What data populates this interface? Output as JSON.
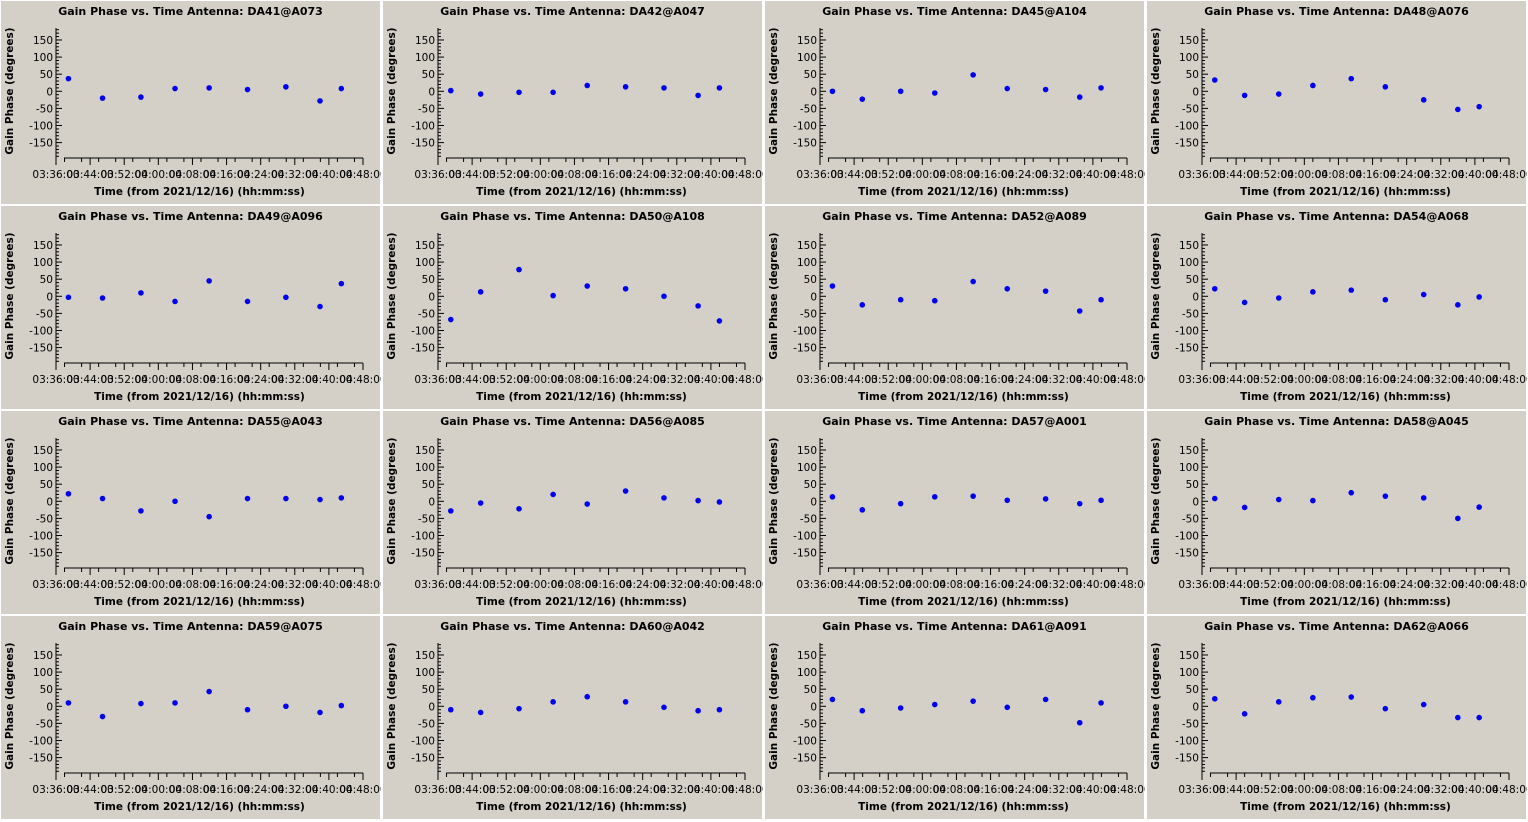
{
  "chart_data": [
    {
      "type": "scatter",
      "title": "Gain Phase vs. Time Antenna: DA41@A073",
      "xlabel": "Time (from 2021/12/16) (hh:mm:ss)",
      "ylabel": "Gain Phase (degrees)",
      "xticks": [
        "03:36:00",
        "03:44:00",
        "03:52:00",
        "04:00:00",
        "04:08:00",
        "04:16:00",
        "04:24:00",
        "04:32:00",
        "04:40:00",
        "04:48:00"
      ],
      "yticks": [
        150,
        100,
        50,
        0,
        -50,
        -100,
        -150
      ],
      "xlim": [
        "03:36:00",
        "04:48:00"
      ],
      "ylim": [
        -195,
        185
      ],
      "marker_color": "#0000ee",
      "x": [
        "03:38:55",
        "03:46:55",
        "03:55:55",
        "04:03:55",
        "04:11:55",
        "04:20:55",
        "04:29:55",
        "04:37:55",
        "04:42:55"
      ],
      "y": [
        37,
        -20,
        -17,
        8,
        10,
        5,
        13,
        -28,
        8
      ]
    },
    {
      "type": "scatter",
      "title": "Gain Phase vs. Time Antenna: DA42@A047",
      "xlabel": "Time (from 2021/12/16) (hh:mm:ss)",
      "ylabel": "Gain Phase (degrees)",
      "xticks": [
        "03:36:00",
        "03:44:00",
        "03:52:00",
        "04:00:00",
        "04:08:00",
        "04:16:00",
        "04:24:00",
        "04:32:00",
        "04:40:00",
        "04:48:00"
      ],
      "yticks": [
        150,
        100,
        50,
        0,
        -50,
        -100,
        -150
      ],
      "xlim": [
        "03:36:00",
        "04:48:00"
      ],
      "ylim": [
        -195,
        185
      ],
      "marker_color": "#0000ee",
      "x": [
        "03:39:00",
        "03:46:00",
        "03:55:00",
        "04:03:00",
        "04:11:00",
        "04:20:00",
        "04:29:00",
        "04:37:00",
        "04:42:00"
      ],
      "y": [
        2,
        -8,
        -3,
        -3,
        17,
        13,
        10,
        -12,
        10
      ]
    },
    {
      "type": "scatter",
      "title": "Gain Phase vs. Time Antenna: DA45@A104",
      "xlabel": "Time (from 2021/12/16) (hh:mm:ss)",
      "ylabel": "Gain Phase (degrees)",
      "xticks": [
        "03:36:00",
        "03:44:00",
        "03:52:00",
        "04:00:00",
        "04:08:00",
        "04:16:00",
        "04:24:00",
        "04:32:00",
        "04:40:00",
        "04:48:00"
      ],
      "yticks": [
        150,
        100,
        50,
        0,
        -50,
        -100,
        -150
      ],
      "xlim": [
        "03:36:00",
        "04:48:00"
      ],
      "ylim": [
        -195,
        185
      ],
      "marker_color": "#0000ee",
      "x": [
        "03:38:55",
        "03:45:55",
        "03:54:55",
        "04:02:55",
        "04:11:55",
        "04:19:55",
        "04:28:55",
        "04:36:55",
        "04:41:55"
      ],
      "y": [
        0,
        -23,
        0,
        -5,
        48,
        8,
        5,
        -17,
        10
      ]
    },
    {
      "type": "scatter",
      "title": "Gain Phase vs. Time Antenna: DA48@A076",
      "xlabel": "Time (from 2021/12/16) (hh:mm:ss)",
      "ylabel": "Gain Phase (degrees)",
      "xticks": [
        "03:36:00",
        "03:44:00",
        "03:52:00",
        "04:00:00",
        "04:08:00",
        "04:16:00",
        "04:24:00",
        "04:32:00",
        "04:40:00",
        "04:48:00"
      ],
      "yticks": [
        150,
        100,
        50,
        0,
        -50,
        -100,
        -150
      ],
      "xlim": [
        "03:36:00",
        "04:48:00"
      ],
      "ylim": [
        -195,
        185
      ],
      "marker_color": "#0000ee",
      "x": [
        "03:39:00",
        "03:46:00",
        "03:54:00",
        "04:02:00",
        "04:11:00",
        "04:19:00",
        "04:28:00",
        "04:36:00",
        "04:41:00"
      ],
      "y": [
        33,
        -12,
        -8,
        17,
        37,
        13,
        -25,
        -53,
        -45
      ]
    },
    {
      "type": "scatter",
      "title": "Gain Phase vs. Time Antenna: DA49@A096",
      "xlabel": "Time (from 2021/12/16) (hh:mm:ss)",
      "ylabel": "Gain Phase (degrees)",
      "xticks": [
        "03:36:00",
        "03:44:00",
        "03:52:00",
        "04:00:00",
        "04:08:00",
        "04:16:00",
        "04:24:00",
        "04:32:00",
        "04:40:00",
        "04:48:00"
      ],
      "yticks": [
        150,
        100,
        50,
        0,
        -50,
        -100,
        -150
      ],
      "xlim": [
        "03:36:00",
        "04:48:00"
      ],
      "ylim": [
        -195,
        185
      ],
      "marker_color": "#0000ee",
      "x": [
        "03:38:55",
        "03:46:55",
        "03:55:55",
        "04:03:55",
        "04:11:55",
        "04:20:55",
        "04:29:55",
        "04:37:55",
        "04:42:55"
      ],
      "y": [
        -3,
        -5,
        10,
        -15,
        45,
        -15,
        -3,
        -30,
        37
      ]
    },
    {
      "type": "scatter",
      "title": "Gain Phase vs. Time Antenna: DA50@A108",
      "xlabel": "Time (from 2021/12/16) (hh:mm:ss)",
      "ylabel": "Gain Phase (degrees)",
      "xticks": [
        "03:36:00",
        "03:44:00",
        "03:52:00",
        "04:00:00",
        "04:08:00",
        "04:16:00",
        "04:24:00",
        "04:32:00",
        "04:40:00",
        "04:48:00"
      ],
      "yticks": [
        150,
        100,
        50,
        0,
        -50,
        -100,
        -150
      ],
      "xlim": [
        "03:36:00",
        "04:48:00"
      ],
      "ylim": [
        -195,
        185
      ],
      "marker_color": "#0000ee",
      "x": [
        "03:39:00",
        "03:46:00",
        "03:55:00",
        "04:03:00",
        "04:11:00",
        "04:20:00",
        "04:29:00",
        "04:37:00",
        "04:42:00"
      ],
      "y": [
        -68,
        13,
        78,
        2,
        30,
        22,
        0,
        -28,
        -72
      ]
    },
    {
      "type": "scatter",
      "title": "Gain Phase vs. Time Antenna: DA52@A089",
      "xlabel": "Time (from 2021/12/16) (hh:mm:ss)",
      "ylabel": "Gain Phase (degrees)",
      "xticks": [
        "03:36:00",
        "03:44:00",
        "03:52:00",
        "04:00:00",
        "04:08:00",
        "04:16:00",
        "04:24:00",
        "04:32:00",
        "04:40:00",
        "04:48:00"
      ],
      "yticks": [
        150,
        100,
        50,
        0,
        -50,
        -100,
        -150
      ],
      "xlim": [
        "03:36:00",
        "04:48:00"
      ],
      "ylim": [
        -195,
        185
      ],
      "marker_color": "#0000ee",
      "x": [
        "03:38:55",
        "03:45:55",
        "03:54:55",
        "04:02:55",
        "04:11:55",
        "04:19:55",
        "04:28:55",
        "04:36:55",
        "04:41:55"
      ],
      "y": [
        30,
        -25,
        -10,
        -13,
        43,
        22,
        15,
        -43,
        -10
      ]
    },
    {
      "type": "scatter",
      "title": "Gain Phase vs. Time Antenna: DA54@A068",
      "xlabel": "Time (from 2021/12/16) (hh:mm:ss)",
      "ylabel": "Gain Phase (degrees)",
      "xticks": [
        "03:36:00",
        "03:44:00",
        "03:52:00",
        "04:00:00",
        "04:08:00",
        "04:16:00",
        "04:24:00",
        "04:32:00",
        "04:40:00",
        "04:48:00"
      ],
      "yticks": [
        150,
        100,
        50,
        0,
        -50,
        -100,
        -150
      ],
      "xlim": [
        "03:36:00",
        "04:48:00"
      ],
      "ylim": [
        -195,
        185
      ],
      "marker_color": "#0000ee",
      "x": [
        "03:39:00",
        "03:46:00",
        "03:54:00",
        "04:02:00",
        "04:11:00",
        "04:19:00",
        "04:28:00",
        "04:36:00",
        "04:41:00"
      ],
      "y": [
        22,
        -18,
        -5,
        13,
        18,
        -10,
        5,
        -25,
        -2
      ]
    },
    {
      "type": "scatter",
      "title": "Gain Phase vs. Time Antenna: DA55@A043",
      "xlabel": "Time (from 2021/12/16) (hh:mm:ss)",
      "ylabel": "Gain Phase (degrees)",
      "xticks": [
        "03:36:00",
        "03:44:00",
        "03:52:00",
        "04:00:00",
        "04:08:00",
        "04:16:00",
        "04:24:00",
        "04:32:00",
        "04:40:00",
        "04:48:00"
      ],
      "yticks": [
        150,
        100,
        50,
        0,
        -50,
        -100,
        -150
      ],
      "xlim": [
        "03:36:00",
        "04:48:00"
      ],
      "ylim": [
        -195,
        185
      ],
      "marker_color": "#0000ee",
      "x": [
        "03:38:55",
        "03:46:55",
        "03:55:55",
        "04:03:55",
        "04:11:55",
        "04:20:55",
        "04:29:55",
        "04:37:55",
        "04:42:55"
      ],
      "y": [
        22,
        8,
        -28,
        0,
        -45,
        8,
        8,
        5,
        10
      ]
    },
    {
      "type": "scatter",
      "title": "Gain Phase vs. Time Antenna: DA56@A085",
      "xlabel": "Time (from 2021/12/16) (hh:mm:ss)",
      "ylabel": "Gain Phase (degrees)",
      "xticks": [
        "03:36:00",
        "03:44:00",
        "03:52:00",
        "04:00:00",
        "04:08:00",
        "04:16:00",
        "04:24:00",
        "04:32:00",
        "04:40:00",
        "04:48:00"
      ],
      "yticks": [
        150,
        100,
        50,
        0,
        -50,
        -100,
        -150
      ],
      "xlim": [
        "03:36:00",
        "04:48:00"
      ],
      "ylim": [
        -195,
        185
      ],
      "marker_color": "#0000ee",
      "x": [
        "03:39:00",
        "03:46:00",
        "03:55:00",
        "04:03:00",
        "04:11:00",
        "04:20:00",
        "04:29:00",
        "04:37:00",
        "04:42:00"
      ],
      "y": [
        -28,
        -5,
        -22,
        20,
        -8,
        30,
        10,
        2,
        -2
      ]
    },
    {
      "type": "scatter",
      "title": "Gain Phase vs. Time Antenna: DA57@A001",
      "xlabel": "Time (from 2021/12/16) (hh:mm:ss)",
      "ylabel": "Gain Phase (degrees)",
      "xticks": [
        "03:36:00",
        "03:44:00",
        "03:52:00",
        "04:00:00",
        "04:08:00",
        "04:16:00",
        "04:24:00",
        "04:32:00",
        "04:40:00",
        "04:48:00"
      ],
      "yticks": [
        150,
        100,
        50,
        0,
        -50,
        -100,
        -150
      ],
      "xlim": [
        "03:36:00",
        "04:48:00"
      ],
      "ylim": [
        -195,
        185
      ],
      "marker_color": "#0000ee",
      "x": [
        "03:38:55",
        "03:45:55",
        "03:54:55",
        "04:02:55",
        "04:11:55",
        "04:19:55",
        "04:28:55",
        "04:36:55",
        "04:41:55"
      ],
      "y": [
        13,
        -25,
        -7,
        13,
        15,
        3,
        7,
        -7,
        3
      ]
    },
    {
      "type": "scatter",
      "title": "Gain Phase vs. Time Antenna: DA58@A045",
      "xlabel": "Time (from 2021/12/16) (hh:mm:ss)",
      "ylabel": "Gain Phase (degrees)",
      "xticks": [
        "03:36:00",
        "03:44:00",
        "03:52:00",
        "04:00:00",
        "04:08:00",
        "04:16:00",
        "04:24:00",
        "04:32:00",
        "04:40:00",
        "04:48:00"
      ],
      "yticks": [
        150,
        100,
        50,
        0,
        -50,
        -100,
        -150
      ],
      "xlim": [
        "03:36:00",
        "04:48:00"
      ],
      "ylim": [
        -195,
        185
      ],
      "marker_color": "#0000ee",
      "x": [
        "03:39:00",
        "03:46:00",
        "03:54:00",
        "04:02:00",
        "04:11:00",
        "04:19:00",
        "04:28:00",
        "04:36:00",
        "04:41:00"
      ],
      "y": [
        8,
        -18,
        5,
        2,
        25,
        15,
        10,
        -50,
        -17
      ]
    },
    {
      "type": "scatter",
      "title": "Gain Phase vs. Time Antenna: DA59@A075",
      "xlabel": "Time (from 2021/12/16) (hh:mm:ss)",
      "ylabel": "Gain Phase (degrees)",
      "xticks": [
        "03:36:00",
        "03:44:00",
        "03:52:00",
        "04:00:00",
        "04:08:00",
        "04:16:00",
        "04:24:00",
        "04:32:00",
        "04:40:00",
        "04:48:00"
      ],
      "yticks": [
        150,
        100,
        50,
        0,
        -50,
        -100,
        -150
      ],
      "xlim": [
        "03:36:00",
        "04:48:00"
      ],
      "ylim": [
        -195,
        185
      ],
      "marker_color": "#0000ee",
      "x": [
        "03:38:55",
        "03:46:55",
        "03:55:55",
        "04:03:55",
        "04:11:55",
        "04:20:55",
        "04:29:55",
        "04:37:55",
        "04:42:55"
      ],
      "y": [
        10,
        -30,
        8,
        10,
        43,
        -10,
        0,
        -18,
        2
      ]
    },
    {
      "type": "scatter",
      "title": "Gain Phase vs. Time Antenna: DA60@A042",
      "xlabel": "Time (from 2021/12/16) (hh:mm:ss)",
      "ylabel": "Gain Phase (degrees)",
      "xticks": [
        "03:36:00",
        "03:44:00",
        "03:52:00",
        "04:00:00",
        "04:08:00",
        "04:16:00",
        "04:24:00",
        "04:32:00",
        "04:40:00",
        "04:48:00"
      ],
      "yticks": [
        150,
        100,
        50,
        0,
        -50,
        -100,
        -150
      ],
      "xlim": [
        "03:36:00",
        "04:48:00"
      ],
      "ylim": [
        -195,
        185
      ],
      "marker_color": "#0000ee",
      "x": [
        "03:39:00",
        "03:46:00",
        "03:55:00",
        "04:03:00",
        "04:11:00",
        "04:20:00",
        "04:29:00",
        "04:37:00",
        "04:42:00"
      ],
      "y": [
        -10,
        -18,
        -7,
        13,
        28,
        13,
        -3,
        -13,
        -10
      ]
    },
    {
      "type": "scatter",
      "title": "Gain Phase vs. Time Antenna: DA61@A091",
      "xlabel": "Time (from 2021/12/16) (hh:mm:ss)",
      "ylabel": "Gain Phase (degrees)",
      "xticks": [
        "03:36:00",
        "03:44:00",
        "03:52:00",
        "04:00:00",
        "04:08:00",
        "04:16:00",
        "04:24:00",
        "04:32:00",
        "04:40:00",
        "04:48:00"
      ],
      "yticks": [
        150,
        100,
        50,
        0,
        -50,
        -100,
        -150
      ],
      "xlim": [
        "03:36:00",
        "04:48:00"
      ],
      "ylim": [
        -195,
        185
      ],
      "marker_color": "#0000ee",
      "x": [
        "03:38:55",
        "03:45:55",
        "03:54:55",
        "04:02:55",
        "04:11:55",
        "04:19:55",
        "04:28:55",
        "04:36:55",
        "04:41:55"
      ],
      "y": [
        20,
        -13,
        -5,
        5,
        15,
        -3,
        20,
        -48,
        10
      ]
    },
    {
      "type": "scatter",
      "title": "Gain Phase vs. Time Antenna: DA62@A066",
      "xlabel": "Time (from 2021/12/16) (hh:mm:ss)",
      "ylabel": "Gain Phase (degrees)",
      "xticks": [
        "03:36:00",
        "03:44:00",
        "03:52:00",
        "04:00:00",
        "04:08:00",
        "04:16:00",
        "04:24:00",
        "04:32:00",
        "04:40:00",
        "04:48:00"
      ],
      "yticks": [
        150,
        100,
        50,
        0,
        -50,
        -100,
        -150
      ],
      "xlim": [
        "03:36:00",
        "04:48:00"
      ],
      "ylim": [
        -195,
        185
      ],
      "marker_color": "#0000ee",
      "x": [
        "03:39:00",
        "03:46:00",
        "03:54:00",
        "04:02:00",
        "04:11:00",
        "04:19:00",
        "04:28:00",
        "04:36:00",
        "04:41:00"
      ],
      "y": [
        22,
        -22,
        13,
        25,
        27,
        -7,
        5,
        -33,
        -33
      ]
    }
  ]
}
